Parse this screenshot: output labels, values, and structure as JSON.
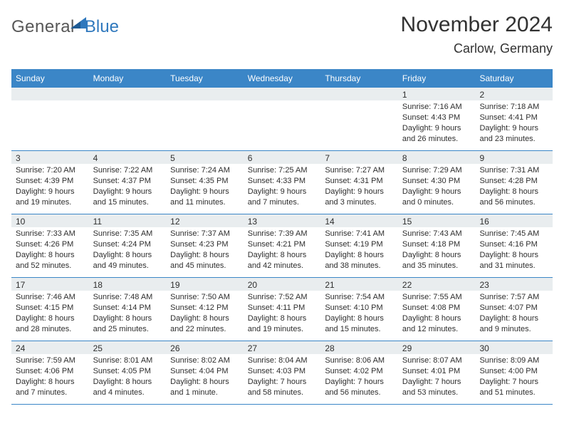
{
  "logo": {
    "general": "General",
    "blue": "Blue"
  },
  "title": "November 2024",
  "location": "Carlow, Germany",
  "colors": {
    "header_bg": "#3b86c7",
    "header_fg": "#ffffff",
    "daynum_bg": "#e9edef",
    "border": "#3b86c7",
    "text": "#2e2e2e",
    "logo_blue": "#2f78bd",
    "logo_gray": "#575757"
  },
  "weekdays": [
    "Sunday",
    "Monday",
    "Tuesday",
    "Wednesday",
    "Thursday",
    "Friday",
    "Saturday"
  ],
  "weeks": [
    [
      {
        "n": "",
        "sunrise": "",
        "sunset": "",
        "daylight": ""
      },
      {
        "n": "",
        "sunrise": "",
        "sunset": "",
        "daylight": ""
      },
      {
        "n": "",
        "sunrise": "",
        "sunset": "",
        "daylight": ""
      },
      {
        "n": "",
        "sunrise": "",
        "sunset": "",
        "daylight": ""
      },
      {
        "n": "",
        "sunrise": "",
        "sunset": "",
        "daylight": ""
      },
      {
        "n": "1",
        "sunrise": "Sunrise: 7:16 AM",
        "sunset": "Sunset: 4:43 PM",
        "daylight": "Daylight: 9 hours and 26 minutes."
      },
      {
        "n": "2",
        "sunrise": "Sunrise: 7:18 AM",
        "sunset": "Sunset: 4:41 PM",
        "daylight": "Daylight: 9 hours and 23 minutes."
      }
    ],
    [
      {
        "n": "3",
        "sunrise": "Sunrise: 7:20 AM",
        "sunset": "Sunset: 4:39 PM",
        "daylight": "Daylight: 9 hours and 19 minutes."
      },
      {
        "n": "4",
        "sunrise": "Sunrise: 7:22 AM",
        "sunset": "Sunset: 4:37 PM",
        "daylight": "Daylight: 9 hours and 15 minutes."
      },
      {
        "n": "5",
        "sunrise": "Sunrise: 7:24 AM",
        "sunset": "Sunset: 4:35 PM",
        "daylight": "Daylight: 9 hours and 11 minutes."
      },
      {
        "n": "6",
        "sunrise": "Sunrise: 7:25 AM",
        "sunset": "Sunset: 4:33 PM",
        "daylight": "Daylight: 9 hours and 7 minutes."
      },
      {
        "n": "7",
        "sunrise": "Sunrise: 7:27 AM",
        "sunset": "Sunset: 4:31 PM",
        "daylight": "Daylight: 9 hours and 3 minutes."
      },
      {
        "n": "8",
        "sunrise": "Sunrise: 7:29 AM",
        "sunset": "Sunset: 4:30 PM",
        "daylight": "Daylight: 9 hours and 0 minutes."
      },
      {
        "n": "9",
        "sunrise": "Sunrise: 7:31 AM",
        "sunset": "Sunset: 4:28 PM",
        "daylight": "Daylight: 8 hours and 56 minutes."
      }
    ],
    [
      {
        "n": "10",
        "sunrise": "Sunrise: 7:33 AM",
        "sunset": "Sunset: 4:26 PM",
        "daylight": "Daylight: 8 hours and 52 minutes."
      },
      {
        "n": "11",
        "sunrise": "Sunrise: 7:35 AM",
        "sunset": "Sunset: 4:24 PM",
        "daylight": "Daylight: 8 hours and 49 minutes."
      },
      {
        "n": "12",
        "sunrise": "Sunrise: 7:37 AM",
        "sunset": "Sunset: 4:23 PM",
        "daylight": "Daylight: 8 hours and 45 minutes."
      },
      {
        "n": "13",
        "sunrise": "Sunrise: 7:39 AM",
        "sunset": "Sunset: 4:21 PM",
        "daylight": "Daylight: 8 hours and 42 minutes."
      },
      {
        "n": "14",
        "sunrise": "Sunrise: 7:41 AM",
        "sunset": "Sunset: 4:19 PM",
        "daylight": "Daylight: 8 hours and 38 minutes."
      },
      {
        "n": "15",
        "sunrise": "Sunrise: 7:43 AM",
        "sunset": "Sunset: 4:18 PM",
        "daylight": "Daylight: 8 hours and 35 minutes."
      },
      {
        "n": "16",
        "sunrise": "Sunrise: 7:45 AM",
        "sunset": "Sunset: 4:16 PM",
        "daylight": "Daylight: 8 hours and 31 minutes."
      }
    ],
    [
      {
        "n": "17",
        "sunrise": "Sunrise: 7:46 AM",
        "sunset": "Sunset: 4:15 PM",
        "daylight": "Daylight: 8 hours and 28 minutes."
      },
      {
        "n": "18",
        "sunrise": "Sunrise: 7:48 AM",
        "sunset": "Sunset: 4:14 PM",
        "daylight": "Daylight: 8 hours and 25 minutes."
      },
      {
        "n": "19",
        "sunrise": "Sunrise: 7:50 AM",
        "sunset": "Sunset: 4:12 PM",
        "daylight": "Daylight: 8 hours and 22 minutes."
      },
      {
        "n": "20",
        "sunrise": "Sunrise: 7:52 AM",
        "sunset": "Sunset: 4:11 PM",
        "daylight": "Daylight: 8 hours and 19 minutes."
      },
      {
        "n": "21",
        "sunrise": "Sunrise: 7:54 AM",
        "sunset": "Sunset: 4:10 PM",
        "daylight": "Daylight: 8 hours and 15 minutes."
      },
      {
        "n": "22",
        "sunrise": "Sunrise: 7:55 AM",
        "sunset": "Sunset: 4:08 PM",
        "daylight": "Daylight: 8 hours and 12 minutes."
      },
      {
        "n": "23",
        "sunrise": "Sunrise: 7:57 AM",
        "sunset": "Sunset: 4:07 PM",
        "daylight": "Daylight: 8 hours and 9 minutes."
      }
    ],
    [
      {
        "n": "24",
        "sunrise": "Sunrise: 7:59 AM",
        "sunset": "Sunset: 4:06 PM",
        "daylight": "Daylight: 8 hours and 7 minutes."
      },
      {
        "n": "25",
        "sunrise": "Sunrise: 8:01 AM",
        "sunset": "Sunset: 4:05 PM",
        "daylight": "Daylight: 8 hours and 4 minutes."
      },
      {
        "n": "26",
        "sunrise": "Sunrise: 8:02 AM",
        "sunset": "Sunset: 4:04 PM",
        "daylight": "Daylight: 8 hours and 1 minute."
      },
      {
        "n": "27",
        "sunrise": "Sunrise: 8:04 AM",
        "sunset": "Sunset: 4:03 PM",
        "daylight": "Daylight: 7 hours and 58 minutes."
      },
      {
        "n": "28",
        "sunrise": "Sunrise: 8:06 AM",
        "sunset": "Sunset: 4:02 PM",
        "daylight": "Daylight: 7 hours and 56 minutes."
      },
      {
        "n": "29",
        "sunrise": "Sunrise: 8:07 AM",
        "sunset": "Sunset: 4:01 PM",
        "daylight": "Daylight: 7 hours and 53 minutes."
      },
      {
        "n": "30",
        "sunrise": "Sunrise: 8:09 AM",
        "sunset": "Sunset: 4:00 PM",
        "daylight": "Daylight: 7 hours and 51 minutes."
      }
    ]
  ]
}
